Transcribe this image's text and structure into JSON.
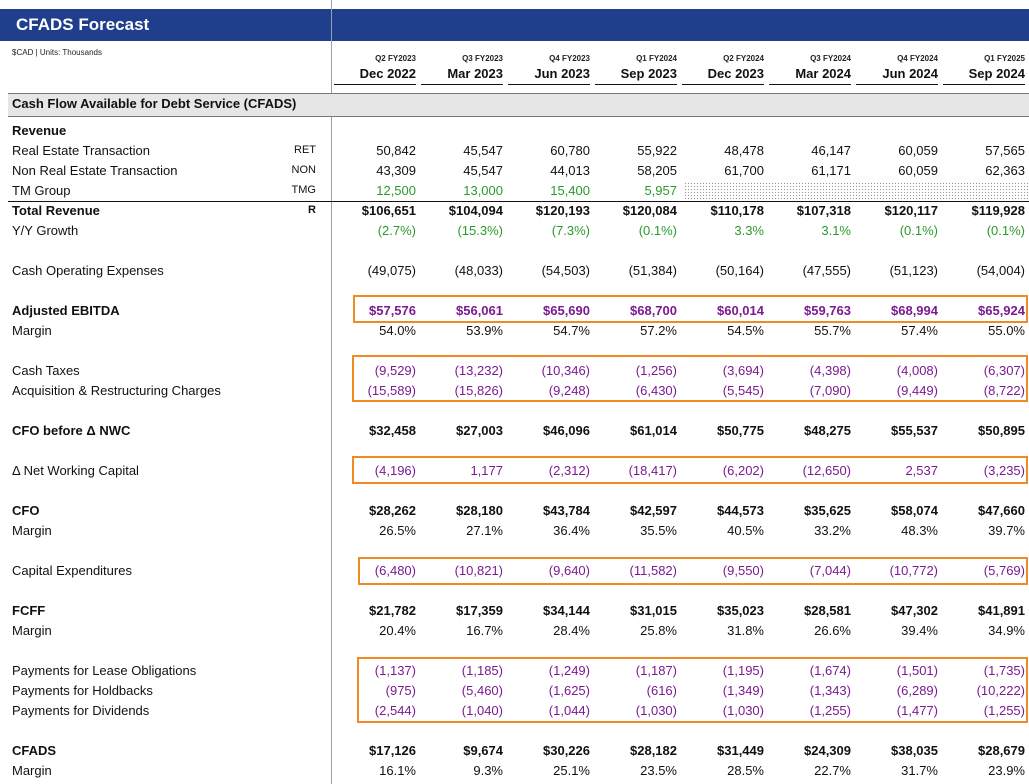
{
  "title": "CFADS Forecast",
  "units": "$CAD | Units: Thousands",
  "section_title": "Cash Flow Available for Debt Service (CFADS)",
  "columns": [
    {
      "q": "Q2 FY2023",
      "d": "Dec 2022"
    },
    {
      "q": "Q3 FY2023",
      "d": "Mar 2023"
    },
    {
      "q": "Q4 FY2023",
      "d": "Jun 2023"
    },
    {
      "q": "Q1 FY2024",
      "d": "Sep 2023"
    },
    {
      "q": "Q2 FY2024",
      "d": "Dec 2023"
    },
    {
      "q": "Q3 FY2024",
      "d": "Mar 2024"
    },
    {
      "q": "Q4 FY2024",
      "d": "Jun 2024"
    },
    {
      "q": "Q1 FY2025",
      "d": "Sep 2024"
    }
  ],
  "rows": [
    {
      "label": "Revenue",
      "code": "",
      "values": []
    },
    {
      "label": "Real Estate Transaction",
      "code": "RET",
      "values": [
        "50,842",
        "45,547",
        "60,780",
        "55,922",
        "48,478",
        "46,147",
        "60,059",
        "57,565"
      ]
    },
    {
      "label": "Non Real Estate Transaction",
      "code": "NON",
      "values": [
        "43,309",
        "45,547",
        "44,013",
        "58,205",
        "61,700",
        "61,171",
        "60,059",
        "62,363"
      ]
    },
    {
      "label": "TM Group",
      "code": "TMG",
      "values": [
        "12,500",
        "13,000",
        "15,400",
        "5,957",
        "",
        "",
        "",
        ""
      ]
    },
    {
      "label": "Total Revenue",
      "code": "R",
      "values": [
        "$106,651",
        "$104,094",
        "$120,193",
        "$120,084",
        "$110,178",
        "$107,318",
        "$120,117",
        "$119,928"
      ]
    },
    {
      "label": "Y/Y Growth",
      "code": "",
      "values": [
        "(2.7%)",
        "(15.3%)",
        "(7.3%)",
        "(0.1%)",
        "3.3%",
        "3.1%",
        "(0.1%)",
        "(0.1%)"
      ]
    },
    {
      "label": "Cash Operating Expenses",
      "code": "",
      "values": [
        "(49,075)",
        "(48,033)",
        "(54,503)",
        "(51,384)",
        "(50,164)",
        "(47,555)",
        "(51,123)",
        "(54,004)"
      ]
    },
    {
      "label": "Adjusted EBITDA",
      "code": "",
      "values": [
        "$57,576",
        "$56,061",
        "$65,690",
        "$68,700",
        "$60,014",
        "$59,763",
        "$68,994",
        "$65,924"
      ]
    },
    {
      "label": "Margin",
      "code": "",
      "values": [
        "54.0%",
        "53.9%",
        "54.7%",
        "57.2%",
        "54.5%",
        "55.7%",
        "57.4%",
        "55.0%"
      ]
    },
    {
      "label": "Cash Taxes",
      "code": "",
      "values": [
        "(9,529)",
        "(13,232)",
        "(10,346)",
        "(1,256)",
        "(3,694)",
        "(4,398)",
        "(4,008)",
        "(6,307)"
      ]
    },
    {
      "label": "Acquisition & Restructuring Charges",
      "code": "",
      "values": [
        "(15,589)",
        "(15,826)",
        "(9,248)",
        "(6,430)",
        "(5,545)",
        "(7,090)",
        "(9,449)",
        "(8,722)"
      ]
    },
    {
      "label": "CFO before Δ NWC",
      "code": "",
      "values": [
        "$32,458",
        "$27,003",
        "$46,096",
        "$61,014",
        "$50,775",
        "$48,275",
        "$55,537",
        "$50,895"
      ]
    },
    {
      "label": "Δ Net Working Capital",
      "code": "",
      "values": [
        "(4,196)",
        "1,177",
        "(2,312)",
        "(18,417)",
        "(6,202)",
        "(12,650)",
        "2,537",
        "(3,235)"
      ]
    },
    {
      "label": "CFO",
      "code": "",
      "values": [
        "$28,262",
        "$28,180",
        "$43,784",
        "$42,597",
        "$44,573",
        "$35,625",
        "$58,074",
        "$47,660"
      ]
    },
    {
      "label": "Margin",
      "code": "",
      "values": [
        "26.5%",
        "27.1%",
        "36.4%",
        "35.5%",
        "40.5%",
        "33.2%",
        "48.3%",
        "39.7%"
      ]
    },
    {
      "label": "Capital Expenditures",
      "code": "",
      "values": [
        "(6,480)",
        "(10,821)",
        "(9,640)",
        "(11,582)",
        "(9,550)",
        "(7,044)",
        "(10,772)",
        "(5,769)"
      ]
    },
    {
      "label": "FCFF",
      "code": "",
      "values": [
        "$21,782",
        "$17,359",
        "$34,144",
        "$31,015",
        "$35,023",
        "$28,581",
        "$47,302",
        "$41,891"
      ]
    },
    {
      "label": "Margin",
      "code": "",
      "values": [
        "20.4%",
        "16.7%",
        "28.4%",
        "25.8%",
        "31.8%",
        "26.6%",
        "39.4%",
        "34.9%"
      ]
    },
    {
      "label": "Payments for Lease Obligations",
      "code": "",
      "values": [
        "(1,137)",
        "(1,185)",
        "(1,249)",
        "(1,187)",
        "(1,195)",
        "(1,674)",
        "(1,501)",
        "(1,735)"
      ]
    },
    {
      "label": "Payments for Holdbacks",
      "code": "",
      "values": [
        "(975)",
        "(5,460)",
        "(1,625)",
        "(616)",
        "(1,349)",
        "(1,343)",
        "(6,289)",
        "(10,222)"
      ]
    },
    {
      "label": "Payments for Dividends",
      "code": "",
      "values": [
        "(2,544)",
        "(1,040)",
        "(1,044)",
        "(1,030)",
        "(1,030)",
        "(1,255)",
        "(1,477)",
        "(1,255)"
      ]
    },
    {
      "label": "CFADS",
      "code": "",
      "values": [
        "$17,126",
        "$9,674",
        "$30,226",
        "$28,182",
        "$31,449",
        "$24,309",
        "$38,035",
        "$28,679"
      ]
    },
    {
      "label": "Margin",
      "code": "",
      "values": [
        "16.1%",
        "9.3%",
        "25.1%",
        "23.5%",
        "28.5%",
        "22.7%",
        "31.7%",
        "23.9%"
      ]
    }
  ],
  "colors": {
    "header_band": "#1f3f8c",
    "highlight_box": "#f08a24",
    "input_purple": "#7b1a91",
    "input_green": "#2a9a2a"
  }
}
